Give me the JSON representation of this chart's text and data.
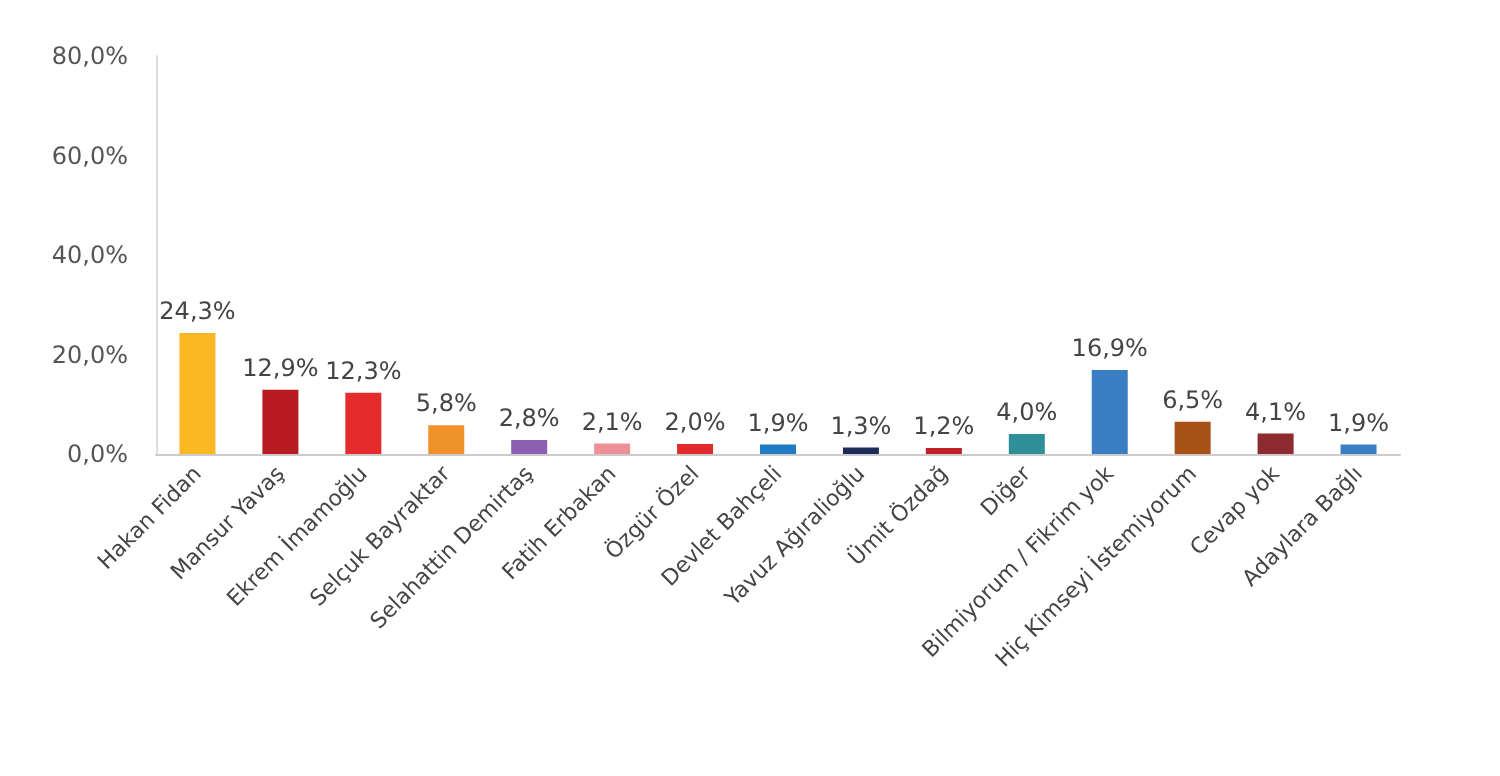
{
  "chart_data": {
    "type": "bar",
    "categories": [
      "Hakan Fidan",
      "Mansur Yavaş",
      "Ekrem İmamoğlu",
      "Selçuk Bayraktar",
      "Selahattin Demirtaş",
      "Fatih Erbakan",
      "Özgür Özel",
      "Devlet Bahçeli",
      "Yavuz Ağıralioğlu",
      "Ümit Özdağ",
      "Diğer",
      "Bilmiyorum / Fikrim yok",
      "Hiç Kimseyi İstemiyorum",
      "Cevap yok",
      "Adaylara Bağlı"
    ],
    "values": [
      24.3,
      12.9,
      12.3,
      5.8,
      2.8,
      2.1,
      2.0,
      1.9,
      1.3,
      1.2,
      4.0,
      16.9,
      6.5,
      4.1,
      1.9
    ],
    "value_labels": [
      "24,3%",
      "12,9%",
      "12,3%",
      "5,8%",
      "2,8%",
      "2,1%",
      "2,0%",
      "1,9%",
      "1,3%",
      "1,2%",
      "4,0%",
      "16,9%",
      "6,5%",
      "4,1%",
      "1,9%"
    ],
    "colors": [
      "#f9b824",
      "#b81c22",
      "#e52b2b",
      "#f0922a",
      "#8d5fb3",
      "#ef8f97",
      "#e02b2b",
      "#1f7cc2",
      "#1c2c5a",
      "#c01f25",
      "#2f8f98",
      "#3a7fc4",
      "#a85218",
      "#8e2b31",
      "#3a7fc4"
    ],
    "ylim": [
      0,
      80
    ],
    "yticks": [
      {
        "value": 0,
        "label": "0,0%"
      },
      {
        "value": 20,
        "label": "20,0%"
      },
      {
        "value": 40,
        "label": "40,0%"
      },
      {
        "value": 60,
        "label": "60,0%"
      },
      {
        "value": 80,
        "label": "80,0%"
      }
    ],
    "grid": false
  }
}
